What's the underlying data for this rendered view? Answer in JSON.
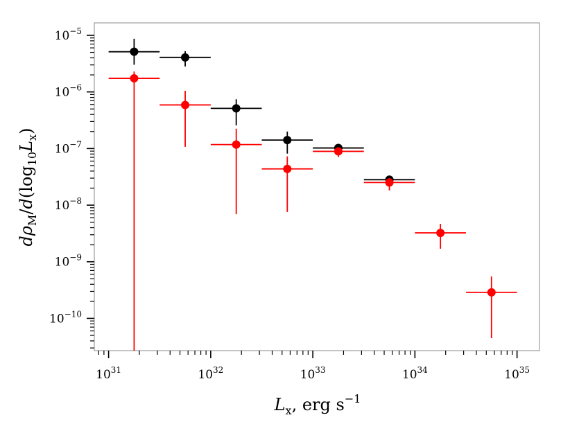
{
  "chart_data": {
    "type": "scatter",
    "title": "",
    "xlabel": "L_x, erg s^-1",
    "ylabel": "dρ_M / d(log10 L_x)",
    "xscale": "log",
    "yscale": "log",
    "xlim_log10": [
      30.86,
      35.22
    ],
    "ylim_log10": [
      -10.57,
      -4.78
    ],
    "x_tick_labels": [
      {
        "base": "10",
        "exp": "31"
      },
      {
        "base": "10",
        "exp": "32"
      },
      {
        "base": "10",
        "exp": "33"
      },
      {
        "base": "10",
        "exp": "34"
      },
      {
        "base": "10",
        "exp": "35"
      }
    ],
    "y_tick_labels": [
      {
        "base": "10",
        "exp": "−5"
      },
      {
        "base": "10",
        "exp": "−6"
      },
      {
        "base": "10",
        "exp": "−7"
      },
      {
        "base": "10",
        "exp": "−8"
      },
      {
        "base": "10",
        "exp": "−9"
      },
      {
        "base": "10",
        "exp": "−10"
      }
    ],
    "series": [
      {
        "name": "black",
        "color": "#000000",
        "points": [
          {
            "x_log10": 31.25,
            "x_lo": 31.0,
            "x_hi": 31.5,
            "y_log10": -5.29,
            "y_lo": -5.52,
            "y_hi": -5.06
          },
          {
            "x_log10": 31.75,
            "x_lo": 31.5,
            "x_hi": 32.0,
            "y_log10": -5.39,
            "y_lo": -5.55,
            "y_hi": -5.28
          },
          {
            "x_log10": 32.25,
            "x_lo": 32.0,
            "x_hi": 32.5,
            "y_log10": -6.29,
            "y_lo": -6.59,
            "y_hi": -6.13
          },
          {
            "x_log10": 32.75,
            "x_lo": 32.5,
            "x_hi": 33.0,
            "y_log10": -6.85,
            "y_lo": -7.09,
            "y_hi": -6.7
          },
          {
            "x_log10": 33.25,
            "x_lo": 33.0,
            "x_hi": 33.5,
            "y_log10": -6.99,
            "y_lo": -7.05,
            "y_hi": -6.97
          },
          {
            "x_log10": 33.75,
            "x_lo": 33.5,
            "x_hi": 34.0,
            "y_log10": -7.55,
            "y_lo": -7.6,
            "y_hi": -7.49
          }
        ]
      },
      {
        "name": "red",
        "color": "#ff0000",
        "points": [
          {
            "x_log10": 31.25,
            "x_lo": 31.0,
            "x_hi": 31.5,
            "y_log10": -5.76,
            "y_lo": -10.57,
            "y_hi": -5.64
          },
          {
            "x_log10": 31.75,
            "x_lo": 31.5,
            "x_hi": 32.0,
            "y_log10": -6.23,
            "y_lo": -6.97,
            "y_hi": -5.98
          },
          {
            "x_log10": 32.25,
            "x_lo": 32.0,
            "x_hi": 32.5,
            "y_log10": -6.93,
            "y_lo": -8.16,
            "y_hi": -6.65
          },
          {
            "x_log10": 32.75,
            "x_lo": 32.5,
            "x_hi": 33.0,
            "y_log10": -7.36,
            "y_lo": -8.12,
            "y_hi": -7.14
          },
          {
            "x_log10": 33.25,
            "x_lo": 33.0,
            "x_hi": 33.5,
            "y_log10": -7.05,
            "y_lo": -7.15,
            "y_hi": -7.0
          },
          {
            "x_log10": 33.75,
            "x_lo": 33.5,
            "x_hi": 34.0,
            "y_log10": -7.6,
            "y_lo": -7.74,
            "y_hi": -7.52
          },
          {
            "x_log10": 34.25,
            "x_lo": 34.0,
            "x_hi": 34.5,
            "y_log10": -8.49,
            "y_lo": -8.77,
            "y_hi": -8.33
          },
          {
            "x_log10": 34.75,
            "x_lo": 34.5,
            "x_hi": 35.0,
            "y_log10": -9.54,
            "y_lo": -10.35,
            "y_hi": -9.26
          }
        ]
      }
    ]
  },
  "labels": {
    "x_main": "L",
    "x_sub": "x",
    "x_unit": ", erg s",
    "x_unit_exp": "−1",
    "y_d1": "d",
    "y_rho": "ρ",
    "y_rho_sub": "M",
    "y_slash": "/",
    "y_d2": "d",
    "y_open": "(log",
    "y_log_sub": "10",
    "y_L": "L",
    "y_L_sub": "x",
    "y_close": ")"
  }
}
